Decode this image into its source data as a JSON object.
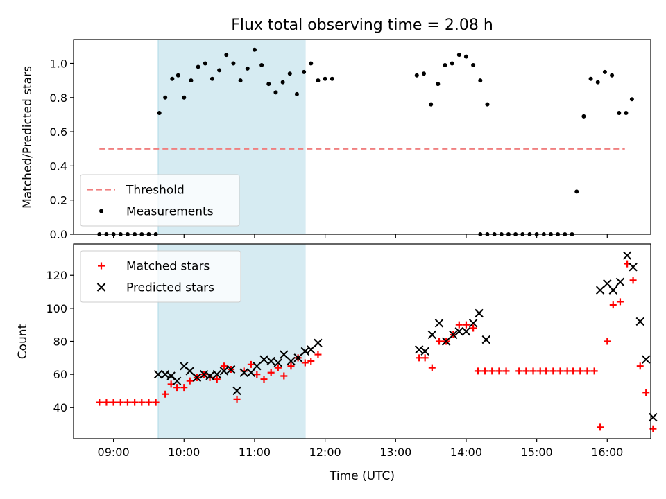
{
  "chart_data": [
    {
      "type": "scatter",
      "title": "Flux total observing time = 2.08 h",
      "xlabel": "",
      "ylabel": "Matched/Predicted stars",
      "xlim": [
        "08:26",
        "16:37"
      ],
      "ylim": [
        0,
        1.14
      ],
      "yticks": [
        "0.0",
        "0.2",
        "0.4",
        "0.6",
        "0.8",
        "1.0"
      ],
      "xtick_labels_visible": false,
      "highlight_span": [
        "09:38",
        "11:43"
      ],
      "legend_position": "lower left",
      "series": [
        {
          "name": "Threshold",
          "style": "dashed-line",
          "color": "#f08080",
          "points": [
            [
              "08:48",
              0.5
            ],
            [
              "16:15",
              0.5
            ]
          ]
        },
        {
          "name": "Measurements",
          "style": "dot",
          "color": "#000000",
          "points": [
            [
              "08:48",
              0.0
            ],
            [
              "08:54",
              0.0
            ],
            [
              "09:00",
              0.0
            ],
            [
              "09:06",
              0.0
            ],
            [
              "09:12",
              0.0
            ],
            [
              "09:18",
              0.0
            ],
            [
              "09:24",
              0.0
            ],
            [
              "09:30",
              0.0
            ],
            [
              "09:36",
              0.0
            ],
            [
              "09:39",
              0.71
            ],
            [
              "09:44",
              0.8
            ],
            [
              "09:50",
              0.91
            ],
            [
              "09:55",
              0.93
            ],
            [
              "10:00",
              0.8
            ],
            [
              "10:06",
              0.9
            ],
            [
              "10:12",
              0.98
            ],
            [
              "10:18",
              1.0
            ],
            [
              "10:24",
              0.91
            ],
            [
              "10:30",
              0.96
            ],
            [
              "10:36",
              1.05
            ],
            [
              "10:42",
              1.0
            ],
            [
              "10:48",
              0.9
            ],
            [
              "10:54",
              0.97
            ],
            [
              "11:00",
              1.08
            ],
            [
              "11:06",
              0.99
            ],
            [
              "11:12",
              0.88
            ],
            [
              "11:18",
              0.83
            ],
            [
              "11:24",
              0.89
            ],
            [
              "11:30",
              0.94
            ],
            [
              "11:36",
              0.82
            ],
            [
              "11:42",
              0.95
            ],
            [
              "11:48",
              1.0
            ],
            [
              "11:54",
              0.9
            ],
            [
              "12:00",
              0.91
            ],
            [
              "12:06",
              0.91
            ],
            [
              "13:18",
              0.93
            ],
            [
              "13:24",
              0.94
            ],
            [
              "13:30",
              0.76
            ],
            [
              "13:36",
              0.88
            ],
            [
              "13:42",
              0.99
            ],
            [
              "13:48",
              1.0
            ],
            [
              "13:54",
              1.05
            ],
            [
              "14:00",
              1.04
            ],
            [
              "14:06",
              0.99
            ],
            [
              "14:12",
              0.9
            ],
            [
              "14:18",
              0.76
            ],
            [
              "14:12",
              0.0
            ],
            [
              "14:18",
              0.0
            ],
            [
              "14:24",
              0.0
            ],
            [
              "14:30",
              0.0
            ],
            [
              "14:36",
              0.0
            ],
            [
              "14:42",
              0.0
            ],
            [
              "14:48",
              0.0
            ],
            [
              "14:54",
              0.0
            ],
            [
              "15:00",
              0.0
            ],
            [
              "15:06",
              0.0
            ],
            [
              "15:12",
              0.0
            ],
            [
              "15:18",
              0.0
            ],
            [
              "15:24",
              0.0
            ],
            [
              "15:30",
              0.0
            ],
            [
              "15:34",
              0.25
            ],
            [
              "15:40",
              0.69
            ],
            [
              "15:46",
              0.91
            ],
            [
              "15:52",
              0.89
            ],
            [
              "15:58",
              0.95
            ],
            [
              "16:04",
              0.93
            ],
            [
              "16:10",
              0.71
            ],
            [
              "16:16",
              0.71
            ],
            [
              "16:21",
              0.79
            ]
          ]
        }
      ]
    },
    {
      "type": "scatter",
      "title": "",
      "xlabel": "Time (UTC)",
      "ylabel": "Count",
      "xlim": [
        "08:26",
        "16:37"
      ],
      "ylim": [
        21,
        139
      ],
      "yticks": [
        "40",
        "60",
        "80",
        "100",
        "120"
      ],
      "xticks": [
        "09:00",
        "10:00",
        "11:00",
        "12:00",
        "13:00",
        "14:00",
        "15:00",
        "16:00"
      ],
      "highlight_span": [
        "09:38",
        "11:43"
      ],
      "legend_position": "upper left",
      "series": [
        {
          "name": "Matched stars",
          "style": "plus",
          "color": "#ff0000",
          "points": [
            [
              "08:48",
              43
            ],
            [
              "08:54",
              43
            ],
            [
              "09:00",
              43
            ],
            [
              "09:06",
              43
            ],
            [
              "09:12",
              43
            ],
            [
              "09:18",
              43
            ],
            [
              "09:24",
              43
            ],
            [
              "09:30",
              43
            ],
            [
              "09:36",
              43
            ],
            [
              "09:44",
              48
            ],
            [
              "09:49",
              54
            ],
            [
              "09:54",
              52
            ],
            [
              "10:00",
              52
            ],
            [
              "10:05",
              56
            ],
            [
              "10:11",
              58
            ],
            [
              "10:17",
              60
            ],
            [
              "10:22",
              58
            ],
            [
              "10:28",
              57
            ],
            [
              "10:34",
              65
            ],
            [
              "10:40",
              63
            ],
            [
              "10:45",
              45
            ],
            [
              "10:51",
              62
            ],
            [
              "10:57",
              66
            ],
            [
              "11:02",
              60
            ],
            [
              "11:08",
              57
            ],
            [
              "11:14",
              61
            ],
            [
              "11:20",
              64
            ],
            [
              "11:25",
              59
            ],
            [
              "11:31",
              65
            ],
            [
              "11:37",
              70
            ],
            [
              "11:43",
              67
            ],
            [
              "11:48",
              68
            ],
            [
              "11:54",
              72
            ],
            [
              "13:20",
              70
            ],
            [
              "13:25",
              70
            ],
            [
              "13:31",
              64
            ],
            [
              "13:37",
              80
            ],
            [
              "13:43",
              80
            ],
            [
              "13:49",
              84
            ],
            [
              "13:54",
              90
            ],
            [
              "14:00",
              90
            ],
            [
              "14:06",
              88
            ],
            [
              "14:10",
              62
            ],
            [
              "14:16",
              62
            ],
            [
              "14:22",
              62
            ],
            [
              "14:28",
              62
            ],
            [
              "14:34",
              62
            ],
            [
              "14:45",
              62
            ],
            [
              "14:51",
              62
            ],
            [
              "14:57",
              62
            ],
            [
              "15:03",
              62
            ],
            [
              "15:08",
              62
            ],
            [
              "15:14",
              62
            ],
            [
              "15:20",
              62
            ],
            [
              "15:26",
              62
            ],
            [
              "15:31",
              62
            ],
            [
              "15:37",
              62
            ],
            [
              "15:43",
              62
            ],
            [
              "15:49",
              62
            ],
            [
              "15:54",
              28
            ],
            [
              "16:00",
              80
            ],
            [
              "16:05",
              102
            ],
            [
              "16:11",
              104
            ],
            [
              "16:17",
              127
            ],
            [
              "16:22",
              117
            ],
            [
              "16:28",
              65
            ],
            [
              "16:33",
              49
            ],
            [
              "16:39",
              27
            ]
          ]
        },
        {
          "name": "Predicted stars",
          "style": "x",
          "color": "#000000",
          "points": [
            [
              "09:38",
              60
            ],
            [
              "09:44",
              60
            ],
            [
              "09:49",
              59
            ],
            [
              "09:54",
              56
            ],
            [
              "10:00",
              65
            ],
            [
              "10:05",
              62
            ],
            [
              "10:11",
              58
            ],
            [
              "10:17",
              60
            ],
            [
              "10:22",
              59
            ],
            [
              "10:28",
              60
            ],
            [
              "10:34",
              62
            ],
            [
              "10:40",
              63
            ],
            [
              "10:45",
              50
            ],
            [
              "10:51",
              61
            ],
            [
              "10:57",
              61
            ],
            [
              "11:02",
              65
            ],
            [
              "11:08",
              69
            ],
            [
              "11:14",
              68
            ],
            [
              "11:20",
              67
            ],
            [
              "11:25",
              72
            ],
            [
              "11:31",
              68
            ],
            [
              "11:37",
              70
            ],
            [
              "11:43",
              74
            ],
            [
              "11:48",
              75
            ],
            [
              "11:54",
              79
            ],
            [
              "13:20",
              75
            ],
            [
              "13:25",
              74
            ],
            [
              "13:31",
              84
            ],
            [
              "13:37",
              91
            ],
            [
              "13:43",
              80
            ],
            [
              "13:49",
              84
            ],
            [
              "13:54",
              86
            ],
            [
              "14:00",
              86
            ],
            [
              "14:06",
              91
            ],
            [
              "14:11",
              97
            ],
            [
              "14:17",
              81
            ],
            [
              "15:54",
              111
            ],
            [
              "16:00",
              115
            ],
            [
              "16:05",
              111
            ],
            [
              "16:11",
              116
            ],
            [
              "16:17",
              132
            ],
            [
              "16:22",
              125
            ],
            [
              "16:28",
              92
            ],
            [
              "16:33",
              69
            ],
            [
              "16:39",
              34
            ]
          ]
        }
      ]
    }
  ]
}
